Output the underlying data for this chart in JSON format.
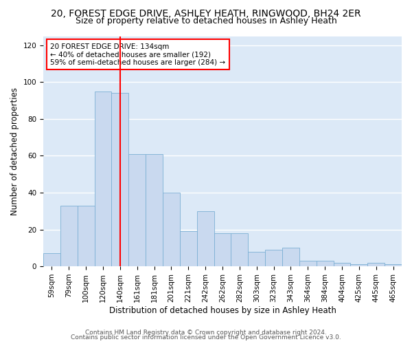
{
  "title_line1": "20, FOREST EDGE DRIVE, ASHLEY HEATH, RINGWOOD, BH24 2ER",
  "title_line2": "Size of property relative to detached houses in Ashley Heath",
  "xlabel": "Distribution of detached houses by size in Ashley Heath",
  "ylabel": "Number of detached properties",
  "categories": [
    "59sqm",
    "79sqm",
    "100sqm",
    "120sqm",
    "140sqm",
    "161sqm",
    "181sqm",
    "201sqm",
    "221sqm",
    "242sqm",
    "262sqm",
    "282sqm",
    "303sqm",
    "323sqm",
    "343sqm",
    "364sqm",
    "384sqm",
    "404sqm",
    "425sqm",
    "445sqm",
    "465sqm"
  ],
  "values": [
    7,
    33,
    33,
    95,
    94,
    61,
    61,
    40,
    19,
    30,
    18,
    18,
    8,
    9,
    10,
    3,
    3,
    2,
    1,
    2,
    1
  ],
  "bar_color": "#c9d9ef",
  "bar_edge_color": "#7bafd4",
  "bg_color": "#dce9f7",
  "grid_color": "#ffffff",
  "fig_bg_color": "#ffffff",
  "vline_x_index": 4,
  "vline_color": "red",
  "annotation_text": "20 FOREST EDGE DRIVE: 134sqm\n← 40% of detached houses are smaller (192)\n59% of semi-detached houses are larger (284) →",
  "annotation_box_color": "white",
  "annotation_box_edge": "red",
  "footer_line1": "Contains HM Land Registry data © Crown copyright and database right 2024.",
  "footer_line2": "Contains public sector information licensed under the Open Government Licence v3.0.",
  "ylim": [
    0,
    125
  ],
  "yticks": [
    0,
    20,
    40,
    60,
    80,
    100,
    120
  ],
  "title1_fontsize": 10,
  "title2_fontsize": 9,
  "ylabel_fontsize": 8.5,
  "xlabel_fontsize": 8.5,
  "tick_fontsize": 7.5,
  "annotation_fontsize": 7.5,
  "footer_fontsize": 6.5
}
